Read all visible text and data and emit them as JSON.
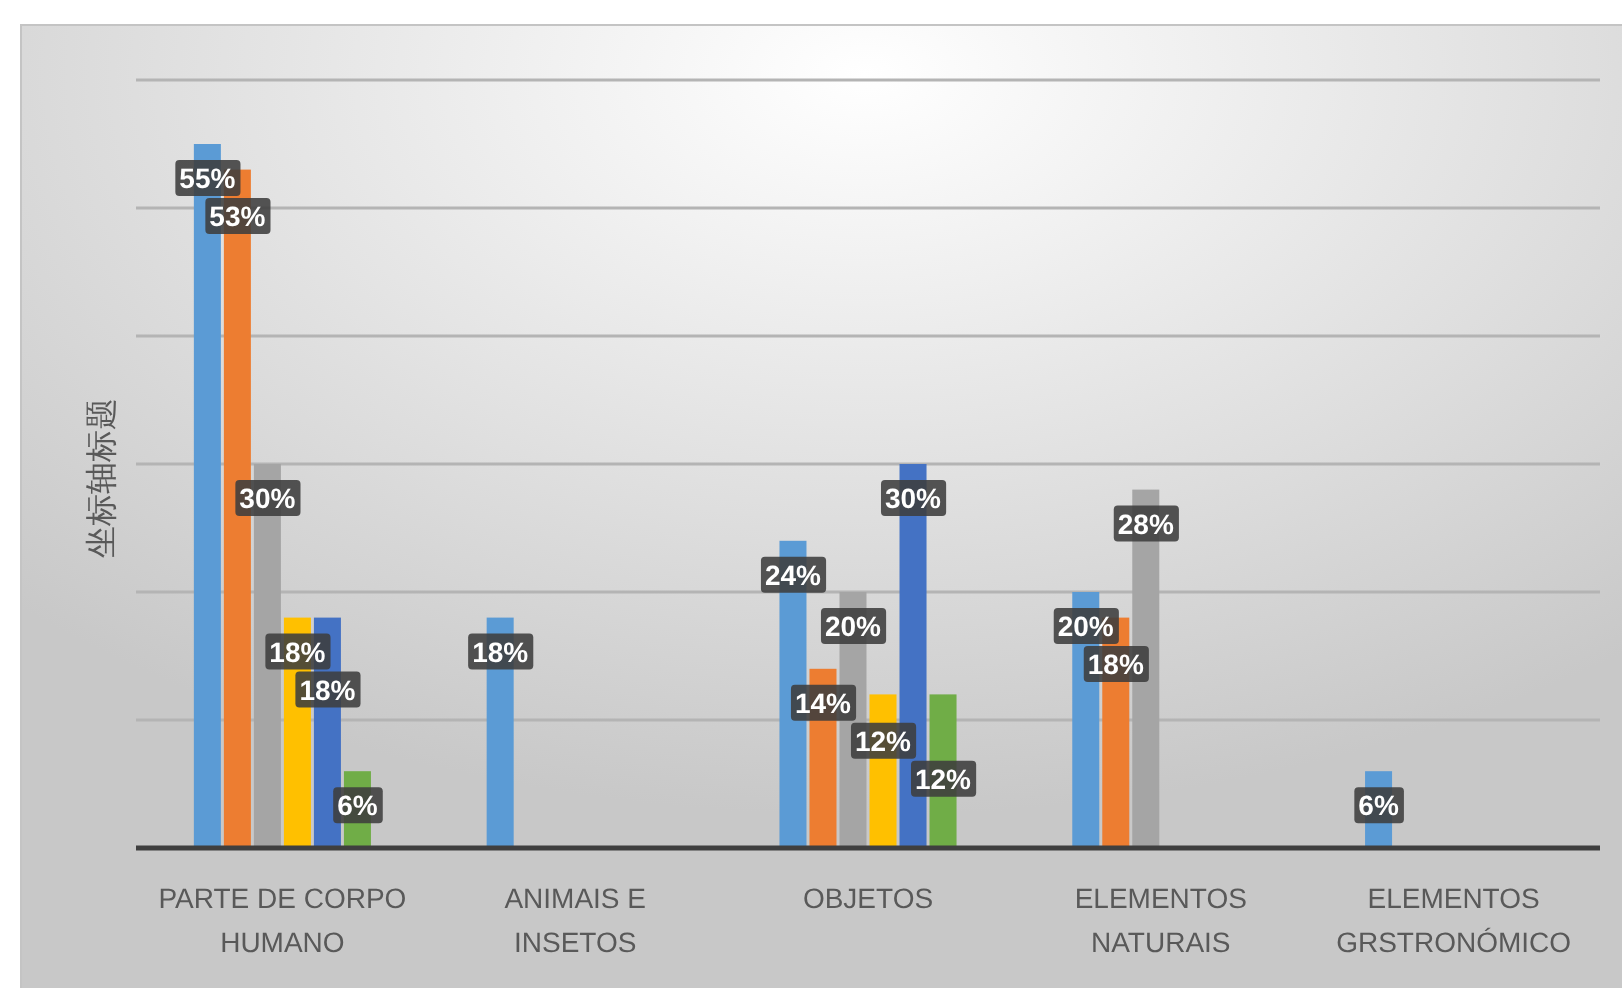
{
  "chart_data": {
    "type": "bar",
    "ylabel": "坐标轴标题",
    "categories": [
      "PARTE DE CORPO HUMANO",
      "ANIMAIS E INSETOS",
      "OBJETOS",
      "ELEMENTOS NATURAIS",
      "ELEMENTOS GRSTRONÓMICO"
    ],
    "series": [
      {
        "color": "#5b9bd5",
        "values": [
          55,
          18,
          24,
          20,
          6
        ],
        "value_labels": [
          "55%",
          "18%",
          "24%",
          "20%",
          "6%"
        ]
      },
      {
        "color": "#ed7d31",
        "values": [
          53,
          null,
          14,
          18,
          null
        ],
        "value_labels": [
          "53%",
          null,
          "14%",
          "18%",
          null
        ]
      },
      {
        "color": "#a5a5a5",
        "values": [
          30,
          null,
          20,
          28,
          null
        ],
        "value_labels": [
          "30%",
          null,
          "20%",
          "28%",
          null
        ]
      },
      {
        "color": "#ffc000",
        "values": [
          18,
          null,
          12,
          null,
          null
        ],
        "value_labels": [
          "18%",
          null,
          "12%",
          null,
          null
        ]
      },
      {
        "color": "#4472c4",
        "values": [
          18,
          null,
          30,
          null,
          null
        ],
        "value_labels": [
          "18%",
          null,
          "30%",
          null,
          null
        ]
      },
      {
        "color": "#70ad47",
        "values": [
          6,
          null,
          12,
          null,
          null
        ],
        "value_labels": [
          "6%",
          null,
          "12%",
          null,
          null
        ]
      }
    ],
    "ylim": [
      0,
      60
    ],
    "yticks": [
      {
        "value": 0,
        "label": null
      },
      {
        "value": 10,
        "label": null
      },
      {
        "value": 20,
        "label": null
      },
      {
        "value": 30,
        "label": null
      },
      {
        "value": 40,
        "label": null
      },
      {
        "value": 50,
        "label": null
      },
      {
        "value": 60,
        "label": null
      }
    ],
    "grid": "y",
    "tick_labels": "x"
  }
}
